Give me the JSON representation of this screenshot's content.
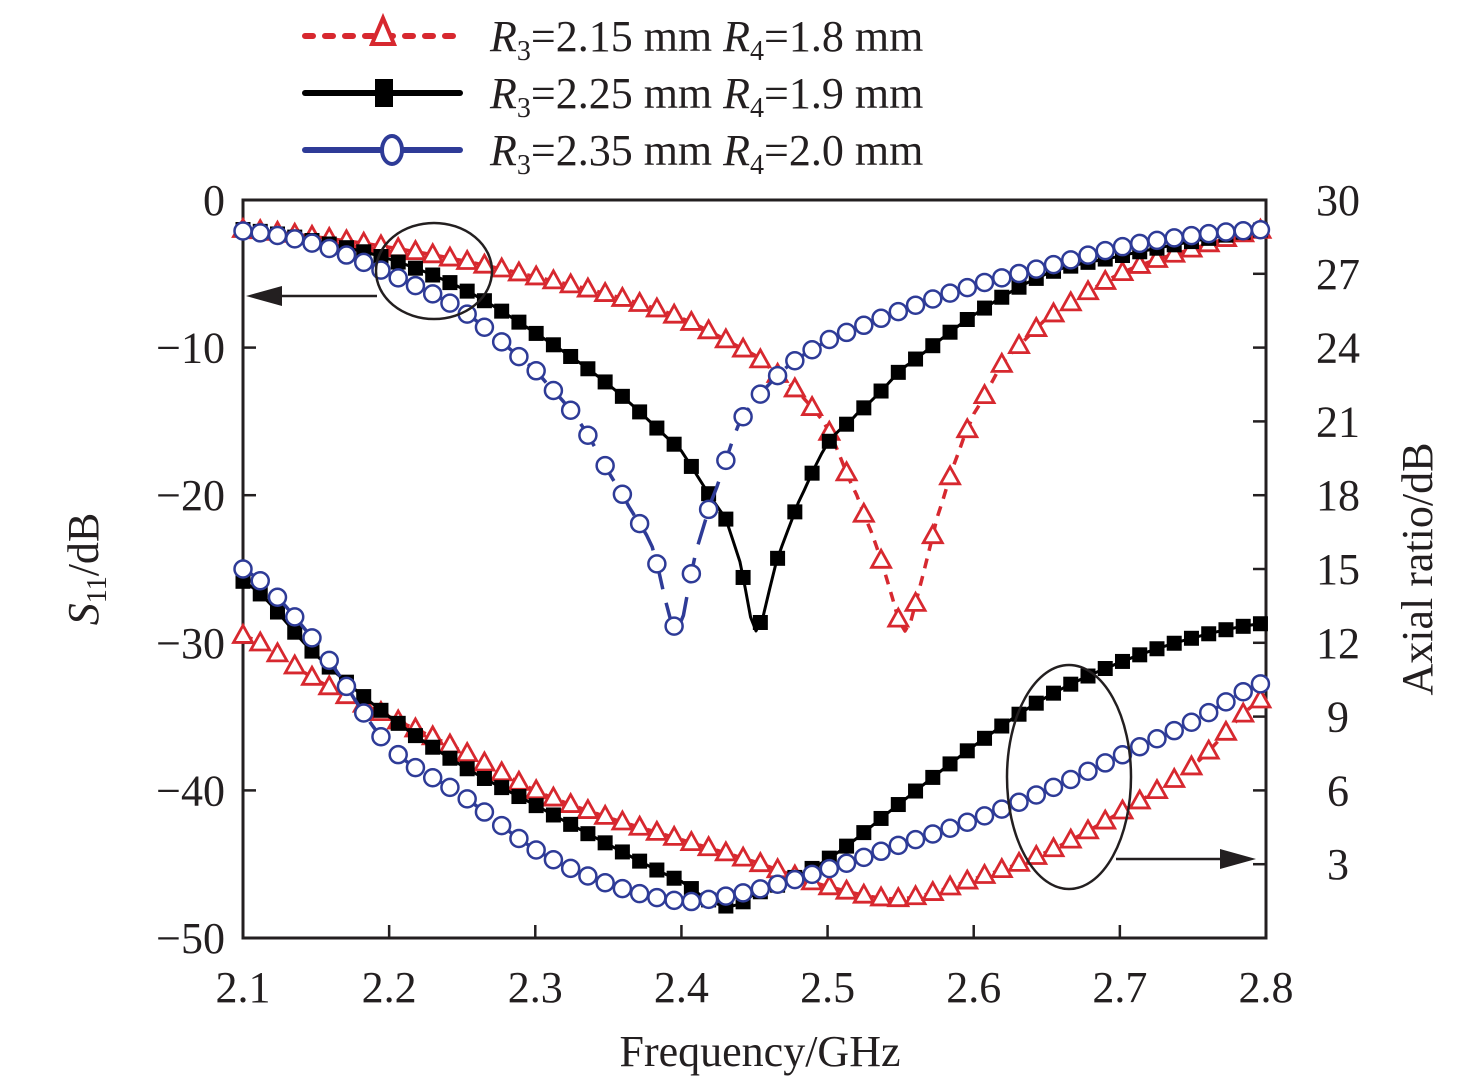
{
  "chart_data": {
    "type": "line",
    "title": "",
    "xlabel": "Frequency/GHz",
    "ylabel_left": "S11/dB",
    "ylabel_left_main": "S",
    "ylabel_left_sub": "11",
    "ylabel_left_suffix": "/dB",
    "ylabel_right": "Axial ratio/dB",
    "xlim": [
      2.1,
      2.8
    ],
    "ylim_left": [
      -50,
      0
    ],
    "ylim_right": [
      0,
      30
    ],
    "x_ticks": [
      "2.1",
      "2.2",
      "2.3",
      "2.4",
      "2.5",
      "2.6",
      "2.7",
      "2.8"
    ],
    "x_tick_values": [
      2.1,
      2.2,
      2.3,
      2.4,
      2.5,
      2.6,
      2.7,
      2.8
    ],
    "y_left_ticks": [
      "0",
      "−10",
      "−20",
      "−30",
      "−40",
      "−50"
    ],
    "y_left_tick_values": [
      0,
      -10,
      -20,
      -30,
      -40,
      -50
    ],
    "y_right_ticks": [
      "30",
      "27",
      "24",
      "21",
      "18",
      "15",
      "12",
      "9",
      "6",
      "3"
    ],
    "y_right_tick_values": [
      30,
      27,
      24,
      21,
      18,
      15,
      12,
      9,
      6,
      3
    ],
    "grid": false,
    "legend_position": "top",
    "annotations": [
      {
        "type": "ellipse-arrow",
        "target": "left-axis",
        "description": "Ellipse around upper curves with arrow pointing to left axis (S11)"
      },
      {
        "type": "ellipse-arrow",
        "target": "right-axis",
        "description": "Ellipse around lower curves with arrow pointing to right axis (Axial ratio)"
      }
    ],
    "series": [
      {
        "name": "R3=2.15 mm R4=1.8 mm",
        "legend": {
          "r3_label": "R",
          "r3_sub": "3",
          "r3_val": "=2.15 mm ",
          "r4_label": "R",
          "r4_sub": "4",
          "r4_val": "=1.8 mm"
        },
        "color": "#d7282f",
        "marker": "triangle-open",
        "line": "dashed",
        "s11": {
          "x": [
            2.1,
            2.15,
            2.2,
            2.25,
            2.3,
            2.35,
            2.4,
            2.45,
            2.48,
            2.5,
            2.52,
            2.53,
            2.54,
            2.553,
            2.565,
            2.575,
            2.59,
            2.6,
            2.62,
            2.65,
            2.7,
            2.75,
            2.8
          ],
          "y": [
            -2.0,
            -2.5,
            -3.2,
            -4.1,
            -5.2,
            -6.4,
            -8.0,
            -10.5,
            -13.0,
            -15.5,
            -20.0,
            -22.5,
            -25.5,
            -29.2,
            -25.5,
            -21.5,
            -17.0,
            -14.5,
            -11.0,
            -8.0,
            -5.0,
            -3.3,
            -2.0
          ]
        },
        "axial_ratio": {
          "x": [
            2.1,
            2.15,
            2.2,
            2.25,
            2.3,
            2.35,
            2.4,
            2.45,
            2.5,
            2.55,
            2.6,
            2.65,
            2.7,
            2.75,
            2.8
          ],
          "y": [
            12.3,
            10.5,
            9.0,
            7.6,
            6.0,
            4.9,
            4.0,
            3.1,
            2.1,
            1.6,
            2.4,
            3.5,
            5.1,
            7.0,
            9.8
          ]
        }
      },
      {
        "name": "R3=2.25 mm R4=1.9 mm",
        "legend": {
          "r3_label": "R",
          "r3_sub": "3",
          "r3_val": "=2.25 mm ",
          "r4_label": "R",
          "r4_sub": "4",
          "r4_val": "=1.9 mm"
        },
        "color": "#000000",
        "marker": "square-filled",
        "line": "solid",
        "s11": {
          "x": [
            2.1,
            2.15,
            2.2,
            2.25,
            2.3,
            2.35,
            2.4,
            2.43,
            2.44,
            2.451,
            2.465,
            2.48,
            2.5,
            2.52,
            2.55,
            2.6,
            2.65,
            2.7,
            2.75,
            2.8
          ],
          "y": [
            -2.0,
            -2.8,
            -4.0,
            -6.0,
            -9.0,
            -12.5,
            -17.0,
            -21.5,
            -24.5,
            -29.2,
            -24.5,
            -20.5,
            -16.5,
            -14.5,
            -11.5,
            -7.8,
            -5.0,
            -3.8,
            -2.8,
            -2.0
          ]
        },
        "axial_ratio": {
          "x": [
            2.1,
            2.15,
            2.2,
            2.25,
            2.3,
            2.35,
            2.4,
            2.43,
            2.45,
            2.5,
            2.55,
            2.6,
            2.65,
            2.7,
            2.75,
            2.8
          ],
          "y": [
            14.5,
            11.5,
            9.0,
            7.0,
            5.4,
            3.8,
            2.3,
            1.3,
            1.8,
            3.2,
            5.5,
            7.8,
            9.8,
            11.2,
            12.2,
            12.8
          ]
        }
      },
      {
        "name": "R3=2.35 mm R4=2.0 mm",
        "legend": {
          "r3_label": "R",
          "r3_sub": "3",
          "r3_val": "=2.35 mm ",
          "r4_label": "R",
          "r4_sub": "4",
          "r4_val": "=2.0 mm"
        },
        "color": "#2e3b97",
        "marker": "circle-open",
        "line": "dash-long",
        "s11": {
          "x": [
            2.1,
            2.15,
            2.2,
            2.25,
            2.3,
            2.33,
            2.36,
            2.38,
            2.397,
            2.41,
            2.42,
            2.44,
            2.47,
            2.5,
            2.55,
            2.6,
            2.65,
            2.7,
            2.75,
            2.8
          ],
          "y": [
            -2.1,
            -3.0,
            -5.0,
            -7.5,
            -11.5,
            -15.0,
            -20.0,
            -23.5,
            -29.2,
            -23.8,
            -20.5,
            -15.0,
            -11.5,
            -9.5,
            -7.5,
            -5.8,
            -4.5,
            -3.2,
            -2.4,
            -2.0
          ]
        },
        "axial_ratio": {
          "x": [
            2.1,
            2.15,
            2.2,
            2.25,
            2.3,
            2.35,
            2.4,
            2.43,
            2.46,
            2.5,
            2.55,
            2.6,
            2.65,
            2.7,
            2.75,
            2.8
          ],
          "y": [
            15.0,
            12.0,
            7.8,
            5.8,
            3.6,
            2.2,
            1.5,
            1.7,
            2.1,
            2.8,
            3.8,
            4.8,
            6.0,
            7.4,
            8.8,
            10.4
          ]
        }
      }
    ]
  }
}
